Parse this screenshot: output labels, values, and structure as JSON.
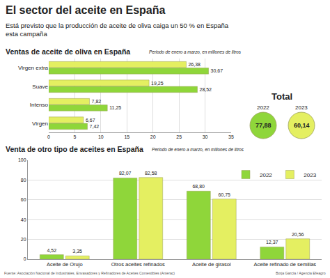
{
  "title": "El sector del aceite en España",
  "subtitle": [
    "Está previsto que la producción de aceite de oliva caiga un 50 % en España",
    "esta campaña"
  ],
  "chart_data": [
    {
      "type": "bar",
      "orientation": "horizontal",
      "title": "Ventas de aceite de oliva en España",
      "subtitle": "Periodo de enero a marzo, en millones de litros",
      "categories": [
        "Virgen extra",
        "Suave",
        "Intenso",
        "Virgen"
      ],
      "series": [
        {
          "name": "2022",
          "color": "#8fd63a",
          "values": [
            30.67,
            28.52,
            11.25,
            7.42
          ],
          "value_labels": [
            "30,67",
            "28,52",
            "11,25",
            "7,42"
          ]
        },
        {
          "name": "2023",
          "color": "#e4ef61",
          "values": [
            26.38,
            19.25,
            7.82,
            6.67
          ],
          "value_labels": [
            "26,38",
            "19,25",
            "7,82",
            "6,67"
          ]
        }
      ],
      "xlim": [
        0,
        35
      ],
      "xticks": [
        0,
        5,
        10,
        15,
        20,
        25,
        30,
        35
      ],
      "grid": true,
      "data_labels": true
    },
    {
      "type": "bar",
      "title": "Venta de otro tipo de aceites en España",
      "subtitle": "Periodo de enero a marzo, en millones de litros",
      "categories": [
        "Aceite de Orujo",
        "Otros aceites refinados",
        "Aceite de girasol",
        "Aceite refinado de semillas"
      ],
      "series": [
        {
          "name": "2022",
          "color": "#8fd63a",
          "values": [
            4.52,
            82.07,
            68.8,
            12.37
          ],
          "value_labels": [
            "4,52",
            "82,07",
            "68,80",
            "12,37"
          ]
        },
        {
          "name": "2023",
          "color": "#e4ef61",
          "values": [
            3.35,
            82.58,
            60.75,
            20.56
          ],
          "value_labels": [
            "3,35",
            "82,58",
            "60,75",
            "20,56"
          ]
        }
      ],
      "ylim": [
        0,
        100
      ],
      "yticks": [
        0,
        20,
        40,
        60,
        80,
        100
      ],
      "grid": true,
      "data_labels": true,
      "legend": "top right"
    }
  ],
  "totals": {
    "title": "Total",
    "items": [
      {
        "label": "2022",
        "text": "77,88",
        "color": "#8fd63a"
      },
      {
        "label": "2023",
        "text": "60,14",
        "color": "#e4ef61"
      }
    ]
  },
  "source": "Fuente: Asociación Nacional de Industriales, Envasadores y Refinadores de Aceites Comestibles (Anierac)",
  "credit": "Borja García / Agencia Efeagro"
}
